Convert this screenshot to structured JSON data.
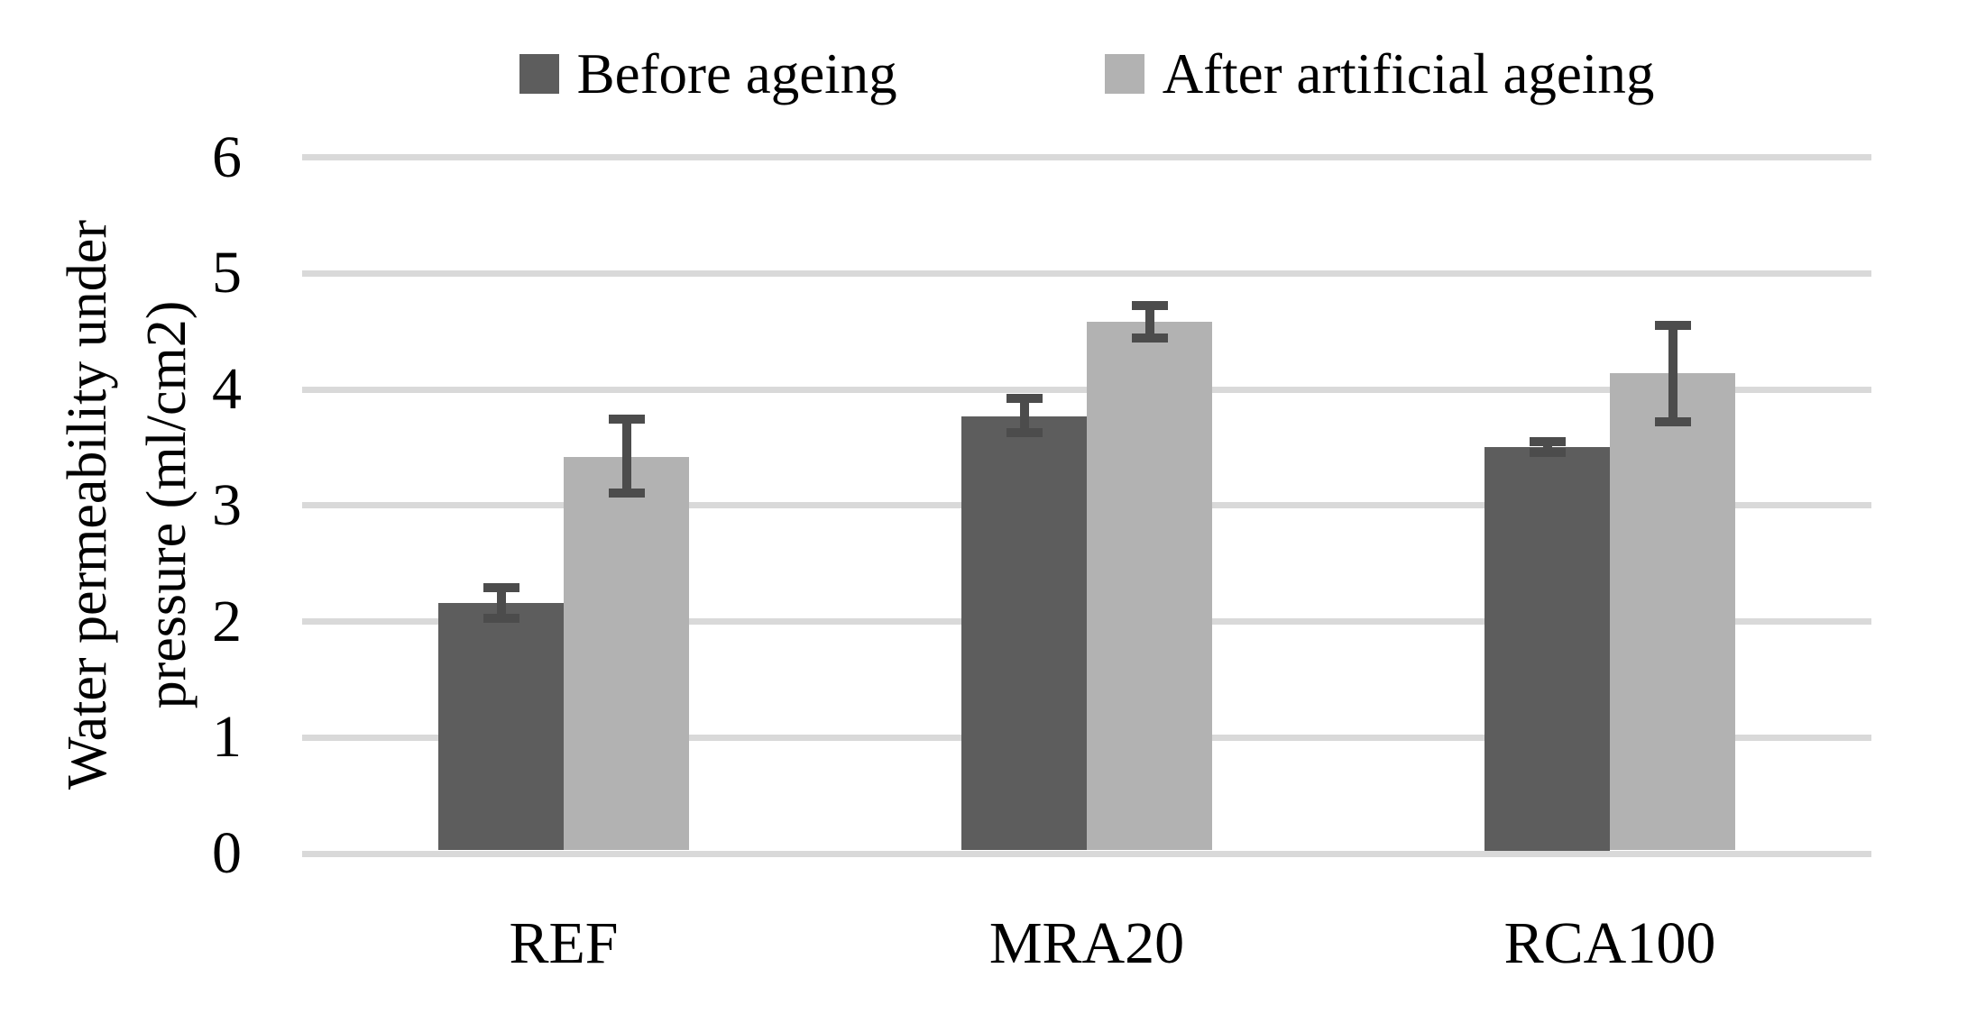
{
  "chart_data": {
    "type": "bar",
    "title": "",
    "categories": [
      "REF",
      "MRA20",
      "RCA100"
    ],
    "series": [
      {
        "name": "Before ageing",
        "color": "#5d5d5d",
        "values": [
          2.16,
          3.77,
          3.5
        ],
        "errors_plus": [
          0.17,
          0.19,
          0.09
        ],
        "errors_minus": [
          0.17,
          0.18,
          0.08
        ]
      },
      {
        "name": "After artificial ageing",
        "color": "#b2b2b2",
        "values": [
          3.42,
          4.58,
          4.14
        ],
        "errors_plus": [
          0.36,
          0.18,
          0.45
        ],
        "errors_minus": [
          0.35,
          0.18,
          0.46
        ]
      }
    ],
    "ylabel_line1": "Water permeability under",
    "ylabel_line2": "pressure (ml/cm2)",
    "xlabel": "",
    "yticks": [
      0,
      1,
      2,
      3,
      4,
      5,
      6
    ],
    "ylim": [
      0,
      6
    ],
    "grid": "horizontal-major",
    "legend_position": "top",
    "colors": {
      "gridline": "#d9d9d9",
      "error_bar": "#4c4c4c",
      "text": "#000000",
      "background": "#ffffff"
    }
  }
}
